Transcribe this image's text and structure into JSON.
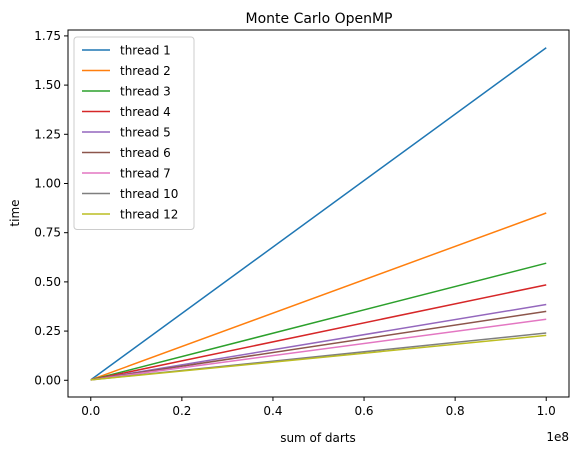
{
  "chart_data": {
    "type": "line",
    "title": "Monte Carlo OpenMP",
    "xlabel": "sum of darts",
    "ylabel": "time",
    "x_offset_label": "1e8",
    "x": [
      0,
      100000000
    ],
    "xlim": [
      -5000000,
      105000000
    ],
    "ylim": [
      -0.085,
      1.78
    ],
    "xticks": [
      0,
      20000000,
      40000000,
      60000000,
      80000000,
      100000000
    ],
    "xtick_labels": [
      "0.0",
      "0.2",
      "0.4",
      "0.6",
      "0.8",
      "1.0"
    ],
    "yticks": [
      0,
      0.25,
      0.5,
      0.75,
      1.0,
      1.25,
      1.5,
      1.75
    ],
    "ytick_labels": [
      "0.00",
      "0.25",
      "0.50",
      "0.75",
      "1.00",
      "1.25",
      "1.50",
      "1.75"
    ],
    "grid": false,
    "legend_position": "top-left",
    "series": [
      {
        "name": "thread 1",
        "color": "#1f77b4",
        "values": [
          0.002,
          1.69
        ]
      },
      {
        "name": "thread 2",
        "color": "#ff7f0e",
        "values": [
          0.002,
          0.85
        ]
      },
      {
        "name": "thread 3",
        "color": "#2ca02c",
        "values": [
          0.002,
          0.595
        ]
      },
      {
        "name": "thread 4",
        "color": "#d62728",
        "values": [
          0.002,
          0.485
        ]
      },
      {
        "name": "thread 5",
        "color": "#9467bd",
        "values": [
          0.002,
          0.385
        ]
      },
      {
        "name": "thread 6",
        "color": "#8c564b",
        "values": [
          0.002,
          0.35
        ]
      },
      {
        "name": "thread 7",
        "color": "#e377c2",
        "values": [
          0.002,
          0.31
        ]
      },
      {
        "name": "thread 10",
        "color": "#7f7f7f",
        "values": [
          0.002,
          0.24
        ]
      },
      {
        "name": "thread 12",
        "color": "#bcbd22",
        "values": [
          0.002,
          0.228
        ]
      }
    ]
  }
}
